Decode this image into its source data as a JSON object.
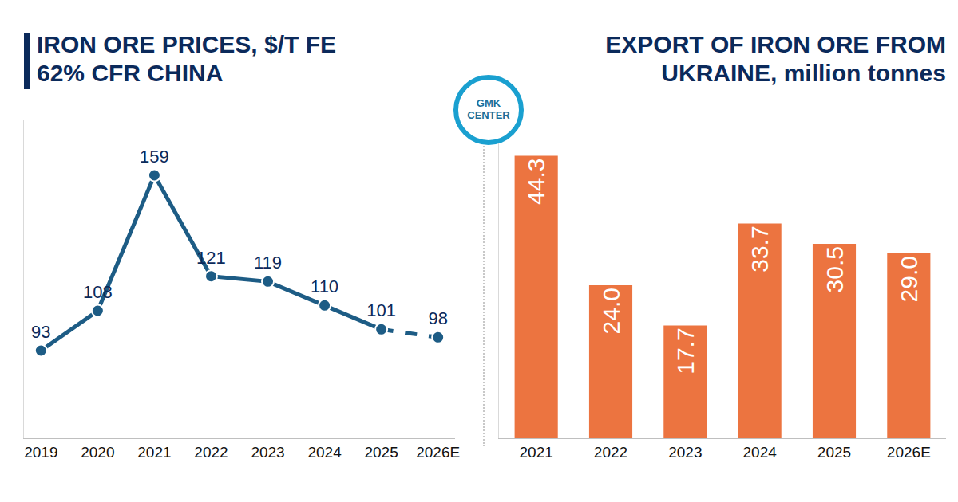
{
  "chart_data": [
    {
      "type": "line",
      "title": "IRON ORE PRICES, $/T FE\n62% CFR CHINA",
      "categories": [
        "2019",
        "2020",
        "2021",
        "2022",
        "2023",
        "2024",
        "2025",
        "2026E"
      ],
      "values": [
        93,
        108,
        159,
        121,
        119,
        110,
        101,
        98
      ],
      "color": "#1d5c85",
      "marker": "circle",
      "line_style": "solid",
      "ylim": [
        60,
        180
      ],
      "grid": false,
      "data_labels": true,
      "tick_labels": "x"
    },
    {
      "type": "bar",
      "title": "EXPORT OF IRON ORE FROM\nUKRAINE, million tonnes",
      "categories": [
        "2021",
        "2022",
        "2023",
        "2024",
        "2025",
        "2026E"
      ],
      "values": [
        44.3,
        24.0,
        17.7,
        33.7,
        30.5,
        29.0
      ],
      "value_labels": [
        "44.3",
        "24.0",
        "17.7",
        "33.7",
        "30.5",
        "29.0"
      ],
      "color": "#ec7440",
      "ylim": [
        0,
        50
      ],
      "grid": false,
      "data_labels": true,
      "tick_labels": "x"
    }
  ],
  "logo": "GMK\nCENTER"
}
